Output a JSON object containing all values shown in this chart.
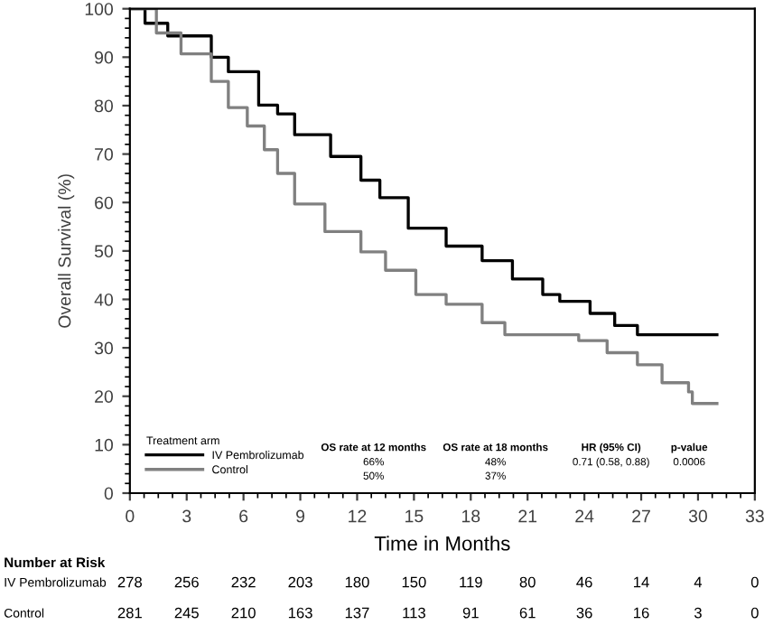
{
  "chart_data": {
    "type": "step",
    "xlabel": "Time in Months",
    "ylabel": "Overall Survival (%)",
    "legend_title": "Treatment arm",
    "legend": "bottom left",
    "grid": false,
    "marker": "none",
    "line_style": "solid",
    "xlim": [
      0,
      33
    ],
    "xticks": [
      0,
      3,
      6,
      9,
      12,
      15,
      18,
      21,
      24,
      27,
      30,
      33
    ],
    "ylim": [
      0,
      100
    ],
    "yticks": [
      0,
      10,
      20,
      30,
      40,
      50,
      60,
      70,
      80,
      90,
      100
    ],
    "series": [
      {
        "name": "IV Pembrolizumab",
        "color": "#000000",
        "x": [
          0,
          0.8,
          2,
          4.3,
          5.2,
          6.8,
          7.8,
          8.7,
          10.6,
          12.2,
          13.2,
          14.7,
          16.7,
          18.6,
          20.2,
          21.8,
          22.7,
          24.3,
          25.6,
          26.8,
          31
        ],
        "values": [
          100,
          97,
          94.4,
          90,
          87,
          80.1,
          78.3,
          74,
          69.5,
          64.6,
          61,
          54.7,
          51,
          48,
          44.2,
          41,
          39.6,
          37.1,
          34.6,
          32.7,
          32.7
        ]
      },
      {
        "name": "Control",
        "color": "#808080",
        "x": [
          0,
          1.4,
          2.7,
          4.3,
          5.2,
          6.2,
          7.1,
          7.8,
          8.7,
          10.3,
          12.2,
          13.5,
          15.1,
          16.7,
          18.6,
          19.8,
          23.7,
          25.2,
          26.8,
          28.1,
          29.5,
          29.7,
          31
        ],
        "values": [
          100,
          95,
          90.7,
          85,
          79.6,
          75.8,
          70.9,
          66,
          59.7,
          54,
          49.8,
          46,
          41,
          39,
          35.2,
          32.7,
          31.5,
          29,
          26.5,
          22.8,
          20.9,
          18.5,
          18.5
        ]
      }
    ],
    "annotations": [
      "OS rate at 12 months",
      "OS rate at 18 months",
      "HR (95% CI)",
      "p-value",
      "66%",
      "48%",
      "0.71 (0.58, 0.88)",
      "0.0006",
      "50%",
      "37%",
      "Number at Risk",
      "278",
      "256",
      "232",
      "203",
      "180",
      "150",
      "119",
      "80",
      "46",
      "14",
      "4",
      "0",
      "281",
      "245",
      "210",
      "163",
      "137",
      "113",
      "91",
      "61",
      "36",
      "16",
      "3",
      "0"
    ]
  }
}
